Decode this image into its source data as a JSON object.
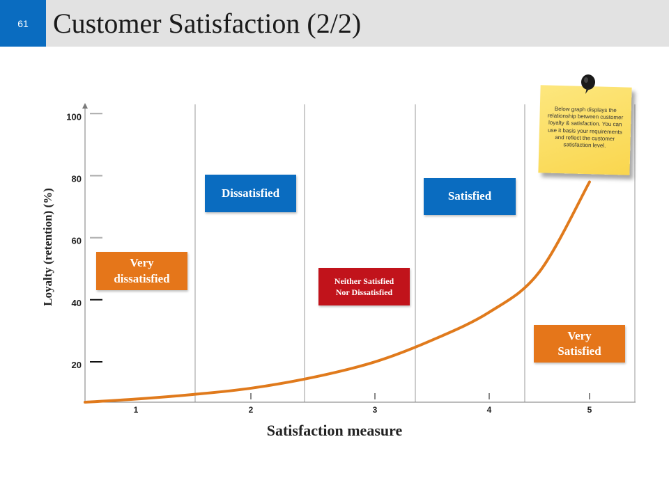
{
  "header": {
    "slide_number": "61",
    "title": "Customer Satisfaction (2/2)"
  },
  "note": {
    "text": "Below graph displays the relationship between customer loyalty & satisfaction. You can use it basis your requirements and reflect the customer satisfaction level."
  },
  "labels": {
    "very_dissatisfied": "Very dissatisfied",
    "dissatisfied": "Dissatisfied",
    "neither": "Neither Satisfied Nor Dissatisfied",
    "satisfied": "Satisfied",
    "very_satisfied": "Very Satisfied"
  },
  "colors": {
    "header_bg": "#e2e2e2",
    "slide_number_bg": "#0a6cc0",
    "curve": "#e07a1c",
    "orange_box": "#e5761a",
    "blue_box": "#0a6cc0",
    "red_box": "#c1131b",
    "note": "#fad95a"
  },
  "chart_data": {
    "type": "line",
    "xlabel": "Satisfaction measure",
    "ylabel": "Loyalty (retention) (%)",
    "x_ticks": [
      "1",
      "2",
      "3",
      "4",
      "5"
    ],
    "y_ticks": [
      "20",
      "40",
      "60",
      "80",
      "100"
    ],
    "y_tick_values": [
      20,
      40,
      60,
      80,
      100
    ],
    "xlim": [
      0.5,
      5.5
    ],
    "ylim": [
      9,
      105
    ],
    "grid": "vertical",
    "series": [
      {
        "x": [
          0.5,
          1.0,
          1.5,
          2.0,
          2.5,
          3.0,
          3.5,
          4.0,
          4.5,
          5.0
        ],
        "y": [
          9,
          10,
          11.5,
          13.5,
          17,
          22,
          29,
          38,
          51,
          80
        ]
      }
    ]
  }
}
